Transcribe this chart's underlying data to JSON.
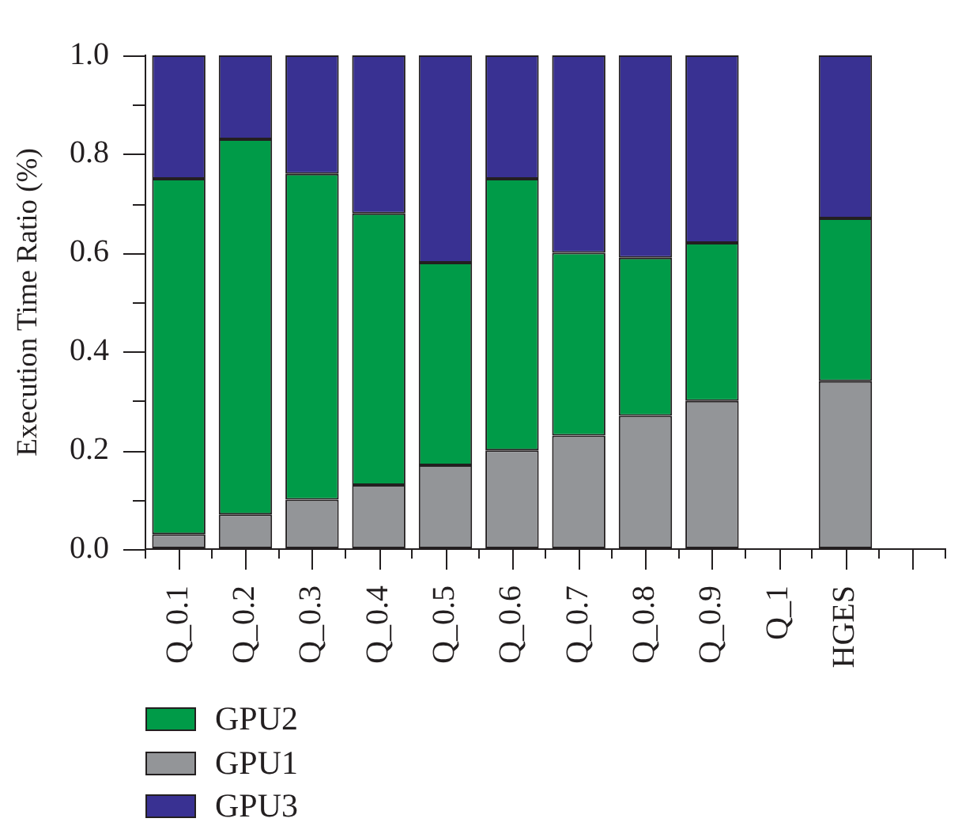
{
  "chart_data": {
    "type": "bar",
    "stacked": true,
    "ylabel": "Execution Time Ratio (%)",
    "categories": [
      "Q_0.1",
      "Q_0.2",
      "Q_0.3",
      "Q_0.4",
      "Q_0.5",
      "Q_0.6",
      "Q_0.7",
      "Q_0.8",
      "Q_0.9",
      "Q_1",
      "HGES",
      null
    ],
    "series": [
      {
        "name": "GPU1",
        "color": "#939598",
        "values": [
          0.03,
          0.07,
          0.1,
          0.13,
          0.17,
          0.2,
          0.23,
          0.27,
          0.3,
          null,
          0.34,
          null
        ]
      },
      {
        "name": "GPU2",
        "color": "#009b48",
        "values": [
          0.72,
          0.76,
          0.66,
          0.55,
          0.41,
          0.55,
          0.37,
          0.32,
          0.32,
          null,
          0.33,
          null
        ]
      },
      {
        "name": "GPU3",
        "color": "#393192",
        "values": [
          0.25,
          0.17,
          0.24,
          0.32,
          0.42,
          0.25,
          0.4,
          0.41,
          0.38,
          null,
          0.33,
          null
        ]
      }
    ],
    "ylim": [
      0,
      1
    ],
    "yticks": [
      {
        "value": 0,
        "label": "0.0"
      },
      {
        "value": 0.1,
        "label": null
      },
      0.2,
      {
        "value": 0.3,
        "label": null
      },
      0.4,
      {
        "value": 0.5,
        "label": null
      },
      0.6,
      {
        "value": 0.7,
        "label": null
      },
      0.8,
      {
        "value": 0.9,
        "label": null
      },
      {
        "value": 1,
        "label": "1.0"
      }
    ],
    "grid": false,
    "legend": "bottom left"
  }
}
